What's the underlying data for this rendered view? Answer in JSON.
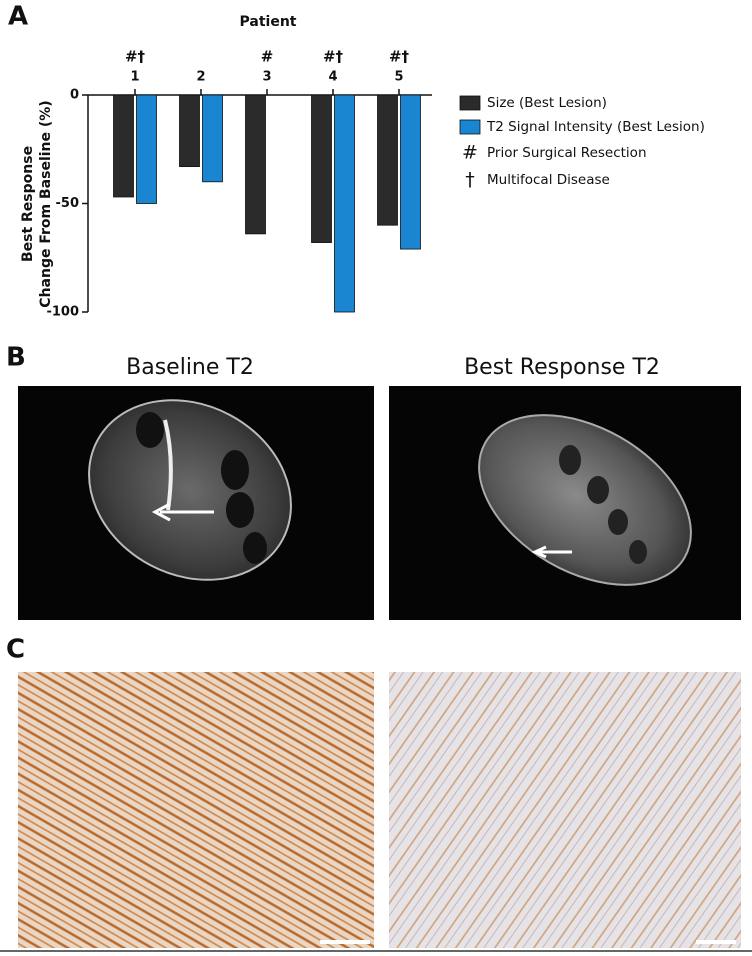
{
  "chart_data": {
    "type": "bar",
    "panel_label": "A",
    "x_title": "Patient",
    "y_title": [
      "Best Response",
      "Change From Baseline (%)"
    ],
    "categories": [
      "1",
      "2",
      "3",
      "4",
      "5"
    ],
    "annotations": [
      "#†",
      null,
      "#",
      "#†",
      "#†"
    ],
    "series": [
      {
        "name": "Size (Best Lesion)",
        "color": "#2b2b2b",
        "values": [
          -47,
          -33,
          -64,
          -68,
          -60
        ]
      },
      {
        "name": "T2 Signal Intensity (Best Lesion)",
        "color": "#1a85d0",
        "values": [
          -50,
          -40,
          null,
          -100,
          -71
        ]
      }
    ],
    "legend_notes": [
      {
        "symbol": "#",
        "label": "Prior Surgical Resection"
      },
      {
        "symbol": "†",
        "label": "Multifocal Disease"
      }
    ],
    "ylim": [
      -100,
      0
    ],
    "yticks": [
      0,
      -50,
      -100
    ]
  },
  "panels": {
    "b_label": "B",
    "b_titles": [
      "Baseline T2",
      "Best Response T2"
    ],
    "c_label": "C"
  }
}
